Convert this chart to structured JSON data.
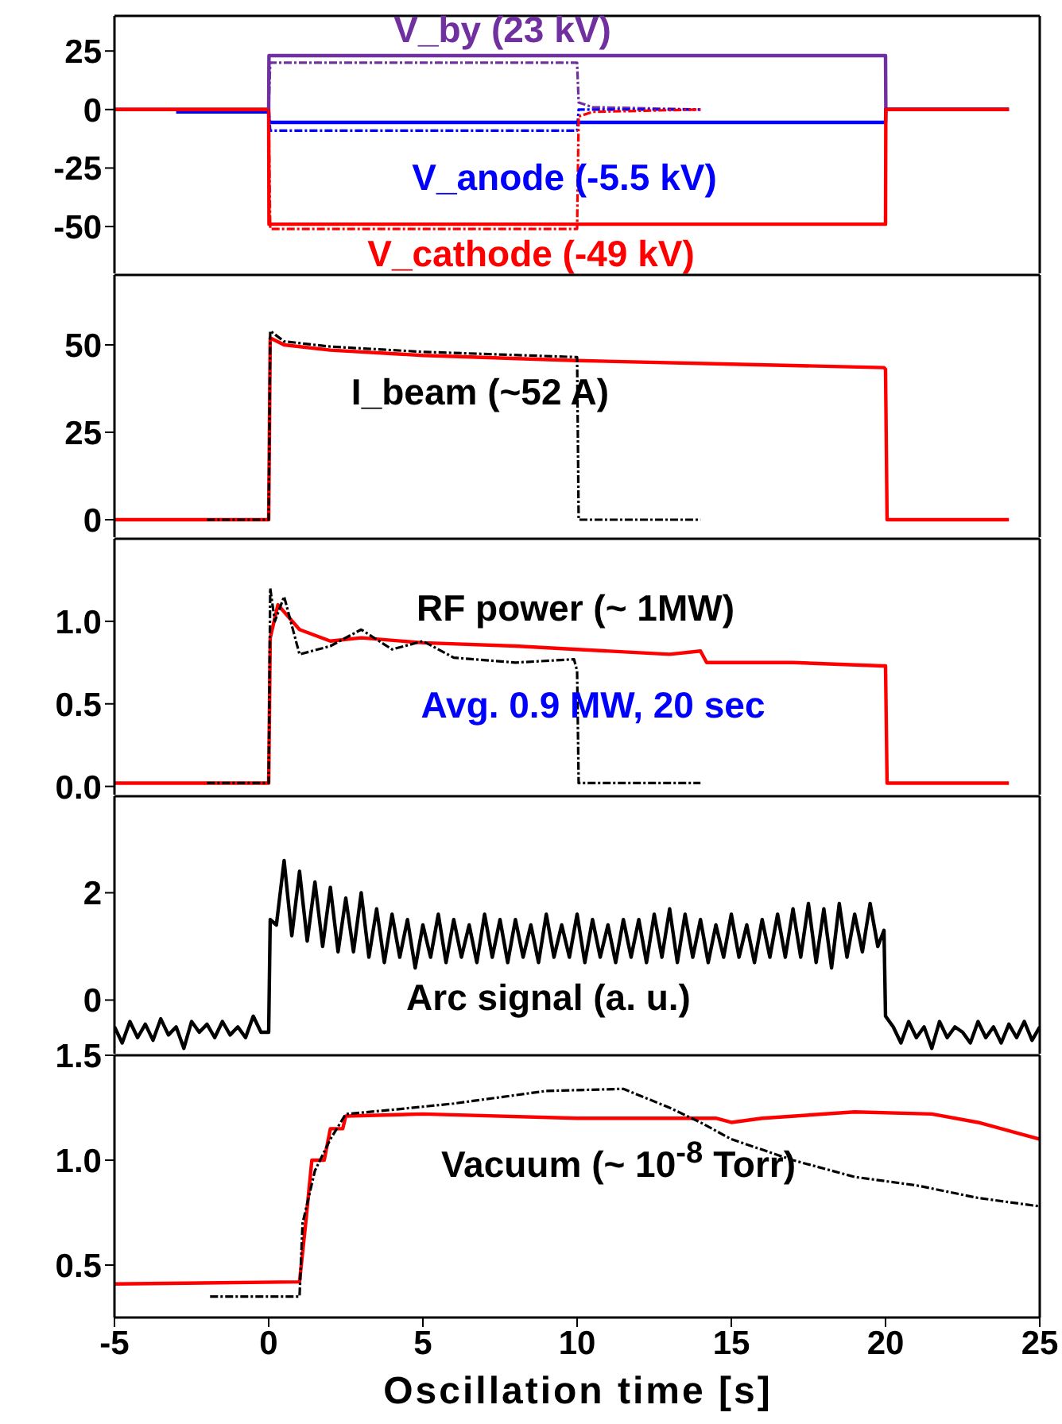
{
  "chart_data": [
    {
      "type": "line",
      "marker": "none",
      "tick_labels": "y",
      "xlim": [
        -5,
        25
      ],
      "xticks": [
        -5,
        0,
        5,
        10,
        15,
        20,
        25
      ],
      "ylim": [
        -70,
        40
      ],
      "yticks": [
        -50,
        -25,
        0,
        25
      ],
      "series": [
        {
          "name": "V_by (23 kV)",
          "color": "#7030a0",
          "line_style": "solid",
          "x": [
            -5,
            0,
            0.01,
            20,
            20.01,
            24
          ],
          "values": [
            0,
            0,
            23,
            23,
            0,
            0
          ]
        },
        {
          "name": "V_anode (-5.5 kV)",
          "color": "#0000ff",
          "line_style": "solid",
          "x": [
            -3,
            0,
            0.01,
            20,
            20.01,
            24
          ],
          "values": [
            -1,
            -1,
            -5.5,
            -5.5,
            0,
            0
          ]
        },
        {
          "name": "V_cathode (-49 kV)",
          "color": "#ff0000",
          "line_style": "solid",
          "x": [
            -5,
            0,
            0.01,
            20,
            20.01,
            24
          ],
          "values": [
            0,
            0,
            -49,
            -49,
            0,
            0
          ]
        },
        {
          "color": "#7030a0",
          "line_style": "dashed",
          "x": [
            0,
            0.05,
            10,
            10.05,
            10.5,
            14
          ],
          "values": [
            0,
            20,
            20,
            3,
            1,
            0
          ]
        },
        {
          "color": "#0000ff",
          "line_style": "dashed",
          "x": [
            0,
            0.05,
            10,
            10.05,
            14
          ],
          "values": [
            0,
            -9,
            -9,
            0,
            0
          ]
        },
        {
          "color": "#ff0000",
          "line_style": "dashed",
          "x": [
            0,
            0.05,
            10,
            10.05,
            10.5,
            14
          ],
          "values": [
            0,
            -51,
            -51,
            -3,
            -1,
            0
          ]
        }
      ]
    },
    {
      "type": "line",
      "marker": "none",
      "tick_labels": "y",
      "xlim": [
        -5,
        25
      ],
      "xticks": [
        -5,
        0,
        5,
        10,
        15,
        20,
        25
      ],
      "ylim": [
        -5,
        70
      ],
      "yticks": [
        0,
        25,
        50
      ],
      "annotations": [
        "I_beam (~52 A)"
      ],
      "series": [
        {
          "color": "#ff0000",
          "line_style": "solid",
          "x": [
            -5,
            0,
            0.05,
            0.5,
            2,
            5,
            10,
            15,
            19.95,
            20,
            20.05,
            24
          ],
          "values": [
            0,
            0,
            52,
            50,
            48.5,
            47,
            45.5,
            44.5,
            43.5,
            43,
            0,
            0
          ]
        },
        {
          "color": "#000000",
          "line_style": "dashed",
          "x": [
            -2,
            0,
            0.05,
            0.5,
            2,
            5,
            10,
            10.05,
            14
          ],
          "values": [
            0,
            0,
            54,
            51,
            49.5,
            48,
            46.5,
            0,
            0
          ]
        }
      ]
    },
    {
      "type": "line",
      "marker": "none",
      "tick_labels": "y",
      "xlim": [
        -5,
        25
      ],
      "xticks": [
        -5,
        0,
        5,
        10,
        15,
        20,
        25
      ],
      "ylim": [
        -0.05,
        1.5
      ],
      "yticks": [
        {
          "value": 0,
          "label": "0.0"
        },
        {
          "value": 0.5,
          "label": "0.5"
        },
        {
          "value": 1,
          "label": "1.0"
        }
      ],
      "annotations": [
        "RF power (~ 1MW)",
        "Avg. 0.9 MW, 20 sec"
      ],
      "series": [
        {
          "color": "#ff0000",
          "line_style": "solid",
          "x": [
            -5,
            0,
            0.05,
            0.3,
            1,
            2,
            3,
            5,
            8,
            10,
            13,
            14,
            14.2,
            17,
            19.9,
            20,
            20.05,
            24
          ],
          "values": [
            0.02,
            0.02,
            0.9,
            1.1,
            0.95,
            0.88,
            0.9,
            0.87,
            0.85,
            0.83,
            0.8,
            0.82,
            0.75,
            0.75,
            0.73,
            0.73,
            0.02,
            0.02
          ]
        },
        {
          "color": "#000000",
          "line_style": "dashed",
          "x": [
            -2,
            0,
            0.05,
            0.2,
            0.5,
            1,
            2,
            3,
            4,
            5,
            6,
            8,
            9.9,
            10,
            10.05,
            14
          ],
          "values": [
            0.02,
            0.02,
            1.2,
            1.0,
            1.15,
            0.8,
            0.85,
            0.95,
            0.83,
            0.88,
            0.78,
            0.75,
            0.77,
            0.7,
            0.02,
            0.02
          ]
        }
      ]
    },
    {
      "type": "line",
      "marker": "none",
      "tick_labels": "y",
      "xlim": [
        -5,
        25
      ],
      "xticks": [
        -5,
        0,
        5,
        10,
        15,
        20,
        25
      ],
      "ylim": [
        -1,
        3.8
      ],
      "yticks": [
        0,
        2
      ],
      "annotations": [
        "Arc signal (a. u.)"
      ],
      "x": [
        -5,
        -4.75,
        -4.5,
        -4.25,
        -4,
        -3.75,
        -3.5,
        -3.25,
        -3,
        -2.75,
        -2.5,
        -2.25,
        -2,
        -1.75,
        -1.5,
        -1.25,
        -1,
        -0.75,
        -0.5,
        -0.25,
        0,
        0.05,
        0.25,
        0.5,
        0.75,
        1,
        1.25,
        1.5,
        1.75,
        2,
        2.25,
        2.5,
        2.75,
        3,
        3.25,
        3.5,
        3.75,
        4,
        4.25,
        4.5,
        4.75,
        5,
        5.25,
        5.5,
        5.75,
        6,
        6.25,
        6.5,
        6.75,
        7,
        7.25,
        7.5,
        7.75,
        8,
        8.25,
        8.5,
        8.75,
        9,
        9.25,
        9.5,
        9.75,
        10,
        10.25,
        10.5,
        10.75,
        11,
        11.25,
        11.5,
        11.75,
        12,
        12.25,
        12.5,
        12.75,
        13,
        13.25,
        13.5,
        13.75,
        14,
        14.25,
        14.5,
        14.75,
        15,
        15.25,
        15.5,
        15.75,
        16,
        16.25,
        16.5,
        16.75,
        17,
        17.25,
        17.5,
        17.75,
        18,
        18.25,
        18.5,
        18.75,
        19,
        19.25,
        19.5,
        19.75,
        19.95,
        20,
        20.25,
        20.5,
        20.75,
        21,
        21.25,
        21.5,
        21.75,
        22,
        22.25,
        22.5,
        22.75,
        23,
        23.25,
        23.5,
        23.75,
        24,
        24.25,
        24.5,
        24.75,
        25
      ],
      "series": [
        {
          "color": "#000000",
          "line_style": "solid",
          "values": [
            -0.5,
            -0.8,
            -0.4,
            -0.7,
            -0.45,
            -0.75,
            -0.35,
            -0.65,
            -0.5,
            -0.9,
            -0.4,
            -0.6,
            -0.45,
            -0.7,
            -0.4,
            -0.65,
            -0.5,
            -0.7,
            -0.3,
            -0.6,
            -0.6,
            1.5,
            1.4,
            2.6,
            1.2,
            2.4,
            1.1,
            2.2,
            1.0,
            2.1,
            0.9,
            1.9,
            0.9,
            2.0,
            0.8,
            1.7,
            0.7,
            1.6,
            0.8,
            1.5,
            0.6,
            1.4,
            0.8,
            1.6,
            0.7,
            1.5,
            0.8,
            1.4,
            0.7,
            1.6,
            0.8,
            1.5,
            0.7,
            1.5,
            0.8,
            1.4,
            0.7,
            1.6,
            0.8,
            1.4,
            0.8,
            1.6,
            0.7,
            1.5,
            0.8,
            1.4,
            0.7,
            1.5,
            0.8,
            1.5,
            0.7,
            1.6,
            0.8,
            1.7,
            0.7,
            1.6,
            0.8,
            1.5,
            0.7,
            1.4,
            0.8,
            1.6,
            0.8,
            1.4,
            0.7,
            1.5,
            0.8,
            1.6,
            0.8,
            1.7,
            0.8,
            1.8,
            0.7,
            1.7,
            0.6,
            1.8,
            0.8,
            1.6,
            0.9,
            1.8,
            1.0,
            1.3,
            -0.3,
            -0.5,
            -0.8,
            -0.4,
            -0.7,
            -0.5,
            -0.9,
            -0.4,
            -0.7,
            -0.5,
            -0.6,
            -0.8,
            -0.4,
            -0.7,
            -0.5,
            -0.8,
            -0.45,
            -0.7,
            -0.4,
            -0.75,
            -0.5
          ]
        }
      ]
    },
    {
      "type": "line",
      "marker": "none",
      "xlim": [
        -5,
        25
      ],
      "xticks": [
        -5,
        0,
        5,
        10,
        15,
        20,
        25
      ],
      "ylim": [
        0.25,
        1.5
      ],
      "yticks": [
        {
          "value": 0.5,
          "label": "0.5"
        },
        {
          "value": 1,
          "label": "1.0"
        },
        {
          "value": 1.5,
          "label": "1.5"
        }
      ],
      "xlabel": "Oscillation time [s]",
      "annotations": [
        "Vacuum (~ 10$^{-8}$ Torr)"
      ],
      "series": [
        {
          "color": "#ff0000",
          "line_style": "solid",
          "x": [
            -5,
            1,
            1.2,
            1.4,
            1.8,
            2.0,
            2.4,
            2.5,
            5,
            10,
            14.5,
            15,
            16,
            19,
            21.5,
            23,
            25
          ],
          "values": [
            0.41,
            0.42,
            0.7,
            1.0,
            1.0,
            1.15,
            1.15,
            1.21,
            1.22,
            1.2,
            1.2,
            1.18,
            1.2,
            1.23,
            1.22,
            1.18,
            1.1
          ]
        },
        {
          "color": "#000000",
          "line_style": "dashed",
          "x": [
            -1.9,
            1.0,
            1.1,
            1.5,
            2.0,
            2.5,
            4,
            6,
            9,
            11.5,
            13,
            14,
            15,
            17,
            19,
            21,
            23,
            25
          ],
          "values": [
            0.35,
            0.35,
            0.7,
            0.95,
            1.1,
            1.22,
            1.24,
            1.27,
            1.33,
            1.34,
            1.25,
            1.18,
            1.1,
            1.0,
            0.92,
            0.88,
            0.82,
            0.78
          ]
        }
      ]
    }
  ]
}
